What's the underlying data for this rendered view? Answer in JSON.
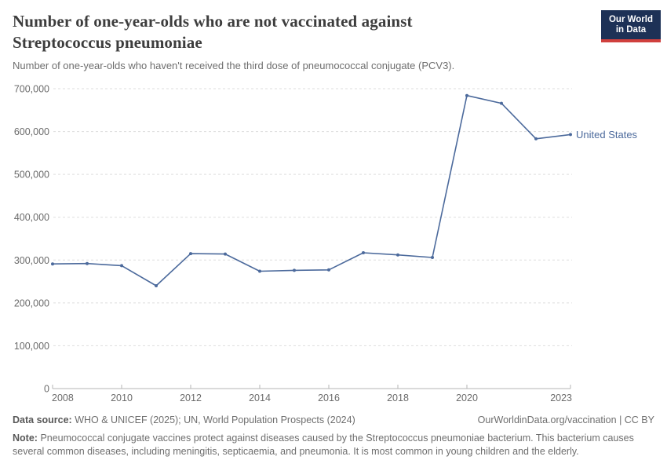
{
  "header": {
    "title": "Number of one-year-olds who are not vaccinated against Streptococcus pneumoniae",
    "subtitle": "Number of one-year-olds who haven't received the third dose of pneumococcal conjugate (PCV3).",
    "logo": {
      "line1": "Our World",
      "line2": "in Data"
    }
  },
  "colors": {
    "series": "#4c6a9c",
    "grid": "#dddddd",
    "axis": "#b6b6b6",
    "tick_text": "#6b6b6b",
    "logo_bg": "#1d3156",
    "logo_accent": "#d0403d"
  },
  "chart_data": {
    "type": "line",
    "title": "Number of one-year-olds who are not vaccinated against Streptococcus pneumoniae",
    "subtitle": "Number of one-year-olds who haven't received the third dose of pneumococcal conjugate (PCV3).",
    "x": [
      2008,
      2009,
      2010,
      2011,
      2012,
      2013,
      2014,
      2015,
      2016,
      2017,
      2018,
      2019,
      2020,
      2021,
      2022,
      2023
    ],
    "series": [
      {
        "name": "United States",
        "color": "#4c6a9c",
        "values": [
          291000,
          292000,
          287000,
          240000,
          315000,
          314000,
          274000,
          276000,
          277000,
          317000,
          312000,
          306000,
          684000,
          666000,
          583000,
          593000
        ]
      }
    ],
    "xlabel": "",
    "ylabel": "",
    "ylim": [
      0,
      700000
    ],
    "yticks": [
      0,
      100000,
      200000,
      300000,
      400000,
      500000,
      600000,
      700000
    ],
    "xticks": [
      2008,
      2010,
      2012,
      2014,
      2016,
      2018,
      2020,
      2023
    ],
    "grid": "horizontal-dashed",
    "legend": "line-end-label"
  },
  "footer": {
    "datasource_label": "Data source:",
    "datasource_text": "WHO & UNICEF (2025); UN, World Population Prospects (2024)",
    "attribution": "OurWorldinData.org/vaccination | CC BY",
    "note_label": "Note:",
    "note_text": "Pneumococcal conjugate vaccines protect against diseases caused by the Streptococcus pneumoniae bacterium. This bacterium causes several common diseases, including meningitis, septicaemia, and pneumonia. It is most common in young children and the elderly."
  }
}
